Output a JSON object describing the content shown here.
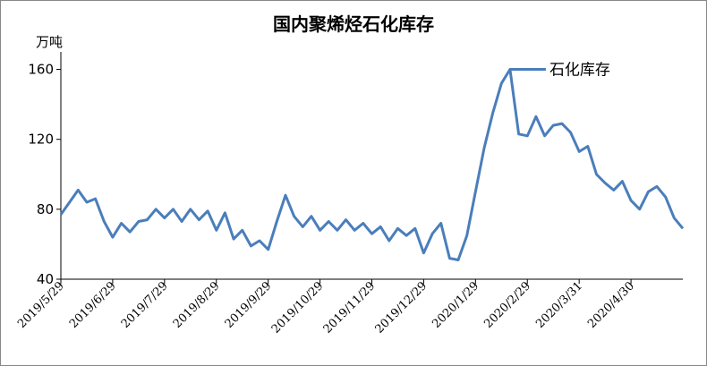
{
  "chart_data": {
    "type": "line",
    "title": "国内聚烯烃石化库存",
    "y_label": "万吨",
    "categories": [
      "2019/5/29",
      null,
      null,
      null,
      null,
      null,
      "2019/6/29",
      null,
      null,
      null,
      null,
      null,
      "2019/7/29",
      null,
      null,
      null,
      null,
      null,
      "2019/8/29",
      null,
      null,
      null,
      null,
      null,
      "2019/9/29",
      null,
      null,
      null,
      null,
      null,
      "2019/10/29",
      null,
      null,
      null,
      null,
      null,
      "2019/11/29",
      null,
      null,
      null,
      null,
      null,
      "2019/12/29",
      null,
      null,
      null,
      null,
      null,
      "2020/1/29",
      null,
      null,
      null,
      null,
      null,
      "2020/2/29",
      null,
      null,
      null,
      null,
      null,
      "2020/3/31",
      null,
      null,
      null,
      null,
      null,
      "2020/4/30",
      null,
      null,
      null,
      null,
      null,
      null
    ],
    "series": [
      {
        "name": "石化库存",
        "color": "#4a7ebb",
        "values": [
          77,
          84,
          91,
          84,
          86,
          73,
          64,
          72,
          67,
          73,
          74,
          80,
          75,
          80,
          73,
          80,
          74,
          79,
          68,
          78,
          63,
          68,
          59,
          62,
          57,
          73,
          88,
          76,
          70,
          76,
          68,
          73,
          68,
          74,
          68,
          72,
          66,
          70,
          62,
          69,
          65,
          69,
          55,
          66,
          72,
          52,
          51,
          65,
          90,
          115,
          135,
          152,
          160,
          123,
          122,
          133,
          122,
          128,
          129,
          124,
          113,
          116,
          100,
          95,
          91,
          96,
          85,
          80,
          90,
          93,
          87,
          75,
          69
        ]
      }
    ],
    "ylim": [
      40,
      170
    ],
    "yticks": [
      40,
      80,
      120,
      160
    ]
  }
}
